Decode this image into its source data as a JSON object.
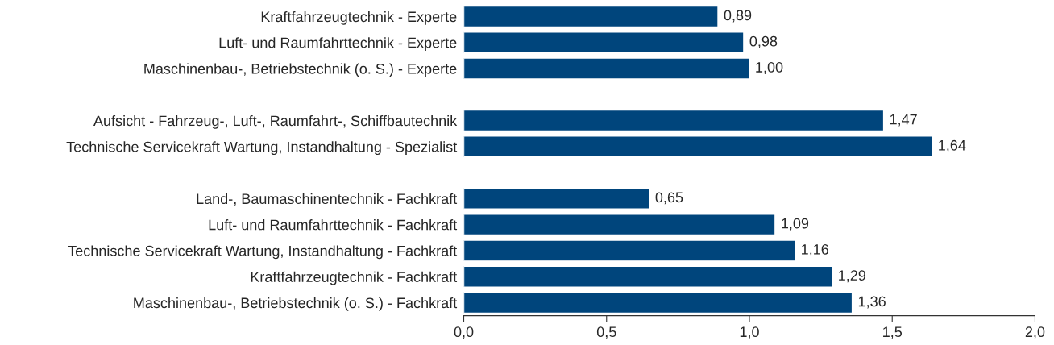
{
  "chart_data": {
    "type": "bar",
    "orientation": "horizontal",
    "categories": [
      "Kraftfahrzeugtechnik - Experte",
      "Luft- und Raumfahrttechnik - Experte",
      "Maschinenbau-, Betriebstechnik (o. S.) - Experte",
      null,
      "Aufsicht - Fahrzeug-, Luft-, Raumfahrt-, Schiffbautechnik",
      "Technische Servicekraft Wartung, Instandhaltung - Spezialist",
      null,
      "Land-, Baumaschinentechnik - Fachkraft",
      "Luft- und Raumfahrttechnik - Fachkraft",
      "Technische Servicekraft Wartung, Instandhaltung - Fachkraft",
      "Kraftfahrzeugtechnik - Fachkraft",
      "Maschinenbau-, Betriebstechnik (o. S.) - Fachkraft"
    ],
    "values": [
      0.89,
      0.98,
      1.0,
      null,
      1.47,
      1.64,
      null,
      0.65,
      1.09,
      1.16,
      1.29,
      1.36
    ],
    "value_labels": [
      "0,89",
      "0,98",
      "1,00",
      null,
      "1,47",
      "1,64",
      null,
      "0,65",
      "1,09",
      "1,16",
      "1,29",
      "1,36"
    ],
    "color": "#00457c",
    "xlim": [
      0,
      2
    ],
    "xticks": [
      {
        "value": 0,
        "label": "0,0"
      },
      {
        "value": 0.5,
        "label": "0,5"
      },
      {
        "value": 1,
        "label": "1,0"
      },
      {
        "value": 1.5,
        "label": "1,5"
      },
      {
        "value": 2,
        "label": "2,0"
      }
    ],
    "grid": false,
    "legend": false
  }
}
